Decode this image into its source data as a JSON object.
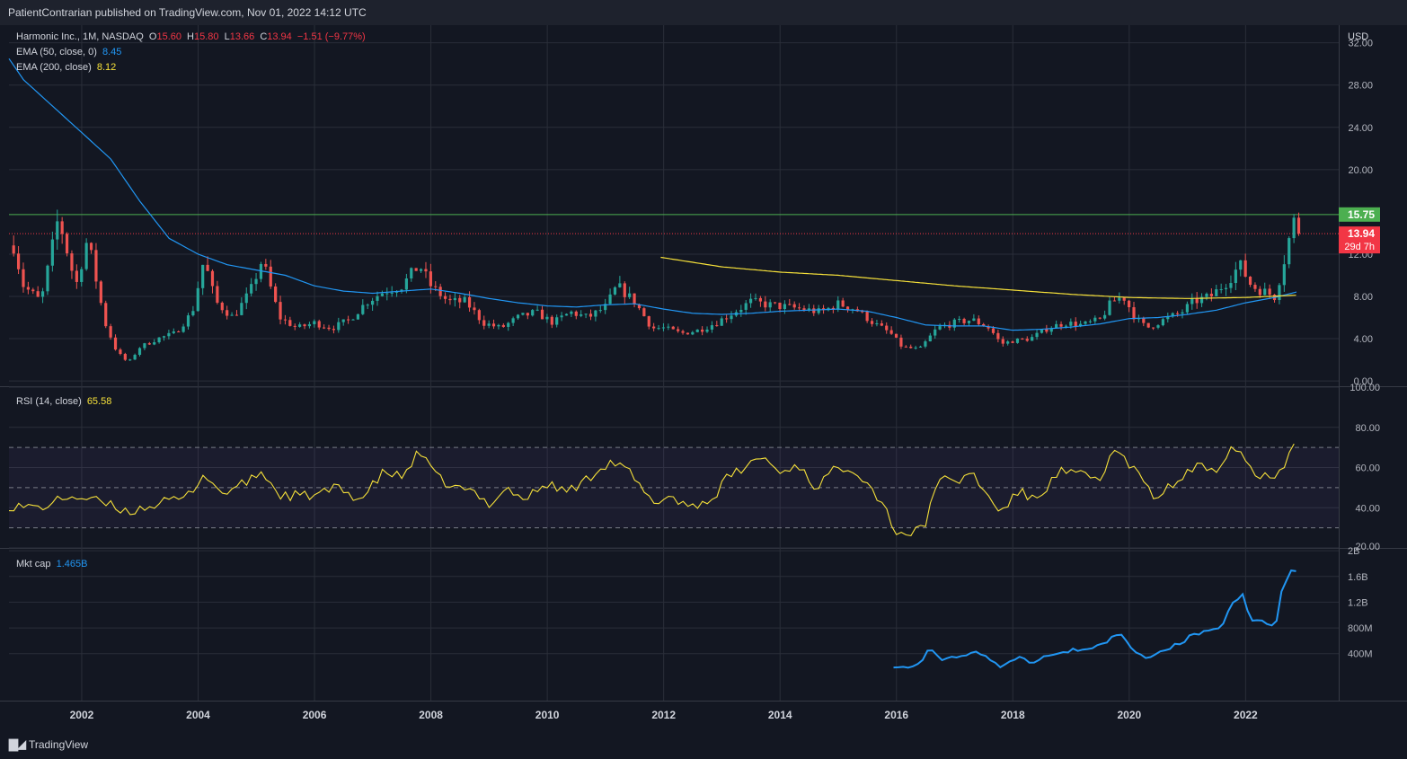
{
  "header": {
    "published": "PatientContrarian published on TradingView.com, Nov 01, 2022 14:12 UTC"
  },
  "footer": {
    "brand": "TradingView",
    "logo_icon": "tradingview-logo-icon"
  },
  "colors": {
    "background": "#131722",
    "grid": "#2a2e39",
    "up": "#26a69a",
    "down": "#ef5350",
    "ema50": "#2196f3",
    "ema200": "#f6e13a",
    "rsi": "#f6e13a",
    "mktcap": "#2196f3",
    "resistance": "#4caf50",
    "last_price": "#f23645"
  },
  "legend": {
    "symbol": "Harmonic Inc., 1M, NASDAQ",
    "o_label": "O",
    "o_value": "15.60",
    "h_label": "H",
    "h_value": "15.80",
    "l_label": "L",
    "l_value": "13.66",
    "c_label": "C",
    "c_value": "13.94",
    "change": "−1.51 (−9.77%)",
    "ema50_label": "EMA (50, close, 0)",
    "ema50_value": "8.45",
    "ema200_label": "EMA (200, close)",
    "ema200_value": "8.12",
    "rsi_label": "RSI (14, close)",
    "rsi_value": "65.58",
    "mktcap_label": "Mkt cap",
    "mktcap_value": "1.465B"
  },
  "chart_data": [
    {
      "type": "candlestick",
      "currency": "USD",
      "price_ticks": [
        "32.00",
        "28.00",
        "24.00",
        "20.00",
        "12.00",
        "8.00",
        "4.00",
        "0.00"
      ],
      "price_tick_values": [
        32,
        28,
        24,
        20,
        12,
        8,
        4,
        0
      ],
      "ylim": [
        -0.5,
        33.5
      ],
      "x_tick_labels": [
        "2002",
        "2004",
        "2006",
        "2008",
        "2010",
        "2012",
        "2014",
        "2016",
        "2018",
        "2020",
        "2022"
      ],
      "x_tick_years": [
        2002,
        2004,
        2006,
        2008,
        2010,
        2012,
        2014,
        2016,
        2018,
        2020,
        2022
      ],
      "xlim": [
        2000.75,
        2023.6
      ],
      "resistance_level": 15.75,
      "resistance_label": "15.75",
      "last_price": 13.94,
      "last_price_label": "13.94",
      "countdown": "29d 7h",
      "close_anchors": [
        [
          2000.8,
          13.5
        ],
        [
          2001.0,
          9.0
        ],
        [
          2001.3,
          7.5
        ],
        [
          2001.6,
          15.5
        ],
        [
          2001.9,
          9.0
        ],
        [
          2002.1,
          13.5
        ],
        [
          2002.4,
          5.5
        ],
        [
          2002.6,
          2.8
        ],
        [
          2002.8,
          1.7
        ],
        [
          2003.0,
          3.2
        ],
        [
          2003.3,
          4.0
        ],
        [
          2003.6,
          4.5
        ],
        [
          2003.9,
          6.5
        ],
        [
          2004.1,
          11.5
        ],
        [
          2004.3,
          7.5
        ],
        [
          2004.6,
          6.0
        ],
        [
          2004.9,
          8.5
        ],
        [
          2005.1,
          11.5
        ],
        [
          2005.4,
          6.0
        ],
        [
          2005.7,
          5.0
        ],
        [
          2006.0,
          5.5
        ],
        [
          2006.3,
          5.0
        ],
        [
          2006.6,
          5.8
        ],
        [
          2006.9,
          7.5
        ],
        [
          2007.2,
          8.5
        ],
        [
          2007.5,
          9.0
        ],
        [
          2007.8,
          11.0
        ],
        [
          2008.0,
          9.0
        ],
        [
          2008.3,
          7.5
        ],
        [
          2008.6,
          7.5
        ],
        [
          2008.9,
          5.5
        ],
        [
          2009.2,
          5.0
        ],
        [
          2009.5,
          6.0
        ],
        [
          2009.8,
          6.5
        ],
        [
          2010.1,
          5.5
        ],
        [
          2010.4,
          6.5
        ],
        [
          2010.7,
          6.0
        ],
        [
          2011.0,
          7.0
        ],
        [
          2011.2,
          9.0
        ],
        [
          2011.5,
          7.5
        ],
        [
          2011.8,
          5.0
        ],
        [
          2012.0,
          5.0
        ],
        [
          2012.3,
          4.5
        ],
        [
          2012.6,
          4.8
        ],
        [
          2012.9,
          5.5
        ],
        [
          2013.2,
          6.5
        ],
        [
          2013.5,
          7.5
        ],
        [
          2013.8,
          7.2
        ],
        [
          2014.1,
          7.0
        ],
        [
          2014.4,
          6.8
        ],
        [
          2014.7,
          6.5
        ],
        [
          2015.0,
          7.3
        ],
        [
          2015.3,
          6.8
        ],
        [
          2015.6,
          5.5
        ],
        [
          2015.9,
          4.5
        ],
        [
          2016.1,
          3.2
        ],
        [
          2016.4,
          3.0
        ],
        [
          2016.7,
          5.0
        ],
        [
          2017.0,
          5.5
        ],
        [
          2017.3,
          5.8
        ],
        [
          2017.6,
          5.0
        ],
        [
          2017.8,
          3.5
        ],
        [
          2018.0,
          3.8
        ],
        [
          2018.3,
          4.0
        ],
        [
          2018.6,
          5.0
        ],
        [
          2018.9,
          5.5
        ],
        [
          2019.2,
          5.3
        ],
        [
          2019.5,
          5.8
        ],
        [
          2019.7,
          7.5
        ],
        [
          2019.9,
          8.0
        ],
        [
          2020.1,
          6.0
        ],
        [
          2020.3,
          5.0
        ],
        [
          2020.6,
          5.8
        ],
        [
          2020.9,
          6.5
        ],
        [
          2021.1,
          7.5
        ],
        [
          2021.4,
          8.0
        ],
        [
          2021.7,
          9.5
        ],
        [
          2021.9,
          11.0
        ],
        [
          2022.1,
          9.0
        ],
        [
          2022.3,
          8.5
        ],
        [
          2022.5,
          8.0
        ],
        [
          2022.6,
          10.0
        ],
        [
          2022.75,
          13.5
        ],
        [
          2022.83,
          15.45
        ],
        [
          2022.9,
          13.94
        ]
      ],
      "ema50_anchors": [
        [
          2000.75,
          30.5
        ],
        [
          2001.0,
          28.5
        ],
        [
          2001.5,
          26.0
        ],
        [
          2002.0,
          23.5
        ],
        [
          2002.5,
          21.0
        ],
        [
          2003.0,
          17.0
        ],
        [
          2003.5,
          13.5
        ],
        [
          2004.0,
          12.0
        ],
        [
          2004.5,
          11.0
        ],
        [
          2005.0,
          10.5
        ],
        [
          2005.5,
          10.0
        ],
        [
          2006.0,
          9.0
        ],
        [
          2006.5,
          8.5
        ],
        [
          2007.0,
          8.3
        ],
        [
          2007.5,
          8.5
        ],
        [
          2008.0,
          8.7
        ],
        [
          2008.5,
          8.3
        ],
        [
          2009.0,
          7.8
        ],
        [
          2009.5,
          7.4
        ],
        [
          2010.0,
          7.1
        ],
        [
          2010.5,
          7.0
        ],
        [
          2011.0,
          7.2
        ],
        [
          2011.5,
          7.3
        ],
        [
          2012.0,
          6.8
        ],
        [
          2012.5,
          6.4
        ],
        [
          2013.0,
          6.3
        ],
        [
          2013.5,
          6.4
        ],
        [
          2014.0,
          6.6
        ],
        [
          2014.5,
          6.7
        ],
        [
          2015.0,
          6.8
        ],
        [
          2015.5,
          6.6
        ],
        [
          2016.0,
          6.0
        ],
        [
          2016.5,
          5.3
        ],
        [
          2017.0,
          5.2
        ],
        [
          2017.5,
          5.2
        ],
        [
          2018.0,
          4.8
        ],
        [
          2018.5,
          4.9
        ],
        [
          2019.0,
          5.1
        ],
        [
          2019.5,
          5.4
        ],
        [
          2020.0,
          5.9
        ],
        [
          2020.5,
          6.0
        ],
        [
          2021.0,
          6.3
        ],
        [
          2021.5,
          6.7
        ],
        [
          2022.0,
          7.4
        ],
        [
          2022.5,
          7.9
        ],
        [
          2022.9,
          8.45
        ]
      ],
      "ema200_anchors": [
        [
          2011.95,
          11.7
        ],
        [
          2013.0,
          10.8
        ],
        [
          2014.0,
          10.3
        ],
        [
          2015.0,
          10.0
        ],
        [
          2016.0,
          9.5
        ],
        [
          2017.0,
          9.0
        ],
        [
          2018.0,
          8.6
        ],
        [
          2019.0,
          8.2
        ],
        [
          2020.0,
          7.9
        ],
        [
          2021.0,
          7.8
        ],
        [
          2022.0,
          7.9
        ],
        [
          2022.9,
          8.12
        ]
      ]
    },
    {
      "type": "line",
      "name": "RSI (14, close)",
      "y_ticks": [
        "100.00",
        "80.00",
        "60.00",
        "40.00",
        "20.00"
      ],
      "y_tick_values": [
        100,
        80,
        60,
        40,
        20
      ],
      "ylim": [
        20,
        100
      ],
      "band": [
        30,
        70
      ],
      "midline": 50,
      "anchors": [
        [
          2000.75,
          41
        ],
        [
          2001.3,
          40
        ],
        [
          2001.8,
          46
        ],
        [
          2002.3,
          43
        ],
        [
          2002.8,
          38
        ],
        [
          2003.3,
          42
        ],
        [
          2003.8,
          45
        ],
        [
          2004.1,
          57
        ],
        [
          2004.4,
          47
        ],
        [
          2004.8,
          52
        ],
        [
          2005.1,
          58
        ],
        [
          2005.4,
          46
        ],
        [
          2006.0,
          46
        ],
        [
          2006.4,
          50
        ],
        [
          2006.8,
          44
        ],
        [
          2007.2,
          58
        ],
        [
          2007.5,
          55
        ],
        [
          2007.8,
          68
        ],
        [
          2008.1,
          55
        ],
        [
          2008.4,
          50
        ],
        [
          2008.7,
          48
        ],
        [
          2009.0,
          42
        ],
        [
          2009.3,
          50
        ],
        [
          2009.6,
          44
        ],
        [
          2010.0,
          52
        ],
        [
          2010.3,
          48
        ],
        [
          2010.6,
          52
        ],
        [
          2010.9,
          60
        ],
        [
          2011.1,
          63
        ],
        [
          2011.4,
          58
        ],
        [
          2011.8,
          42
        ],
        [
          2012.1,
          46
        ],
        [
          2012.4,
          41
        ],
        [
          2012.8,
          43
        ],
        [
          2013.1,
          55
        ],
        [
          2013.4,
          60
        ],
        [
          2013.7,
          66
        ],
        [
          2014.0,
          57
        ],
        [
          2014.3,
          62
        ],
        [
          2014.6,
          50
        ],
        [
          2014.9,
          58
        ],
        [
          2015.2,
          61
        ],
        [
          2015.5,
          53
        ],
        [
          2015.8,
          40
        ],
        [
          2016.0,
          28
        ],
        [
          2016.3,
          27
        ],
        [
          2016.5,
          32
        ],
        [
          2016.7,
          55
        ],
        [
          2017.0,
          52
        ],
        [
          2017.3,
          58
        ],
        [
          2017.6,
          44
        ],
        [
          2017.8,
          38
        ],
        [
          2018.1,
          48
        ],
        [
          2018.4,
          44
        ],
        [
          2018.8,
          58
        ],
        [
          2019.2,
          56
        ],
        [
          2019.5,
          54
        ],
        [
          2019.7,
          68
        ],
        [
          2019.9,
          65
        ],
        [
          2020.2,
          55
        ],
        [
          2020.4,
          45
        ],
        [
          2020.8,
          52
        ],
        [
          2021.1,
          60
        ],
        [
          2021.5,
          60
        ],
        [
          2021.8,
          72
        ],
        [
          2022.0,
          64
        ],
        [
          2022.2,
          55
        ],
        [
          2022.5,
          57
        ],
        [
          2022.7,
          63
        ],
        [
          2022.83,
          73
        ],
        [
          2022.9,
          65.58
        ]
      ]
    },
    {
      "type": "line",
      "name": "Mkt cap",
      "y_ticks": [
        "2B",
        "1.6B",
        "1.2B",
        "800M",
        "400M"
      ],
      "y_tick_values": [
        2000,
        1600,
        1200,
        800,
        400
      ],
      "ylim": [
        -330,
        2030
      ],
      "unit": "millions",
      "anchors": [
        [
          2015.95,
          200
        ],
        [
          2016.2,
          190
        ],
        [
          2016.4,
          260
        ],
        [
          2016.6,
          500
        ],
        [
          2016.8,
          300
        ],
        [
          2017.1,
          380
        ],
        [
          2017.4,
          440
        ],
        [
          2017.6,
          330
        ],
        [
          2017.8,
          190
        ],
        [
          2018.1,
          360
        ],
        [
          2018.3,
          250
        ],
        [
          2018.6,
          380
        ],
        [
          2018.9,
          440
        ],
        [
          2019.2,
          480
        ],
        [
          2019.5,
          500
        ],
        [
          2019.7,
          680
        ],
        [
          2019.9,
          640
        ],
        [
          2020.1,
          460
        ],
        [
          2020.3,
          330
        ],
        [
          2020.6,
          470
        ],
        [
          2020.9,
          560
        ],
        [
          2021.1,
          680
        ],
        [
          2021.4,
          760
        ],
        [
          2021.6,
          880
        ],
        [
          2021.9,
          1330
        ],
        [
          2022.1,
          980
        ],
        [
          2022.3,
          980
        ],
        [
          2022.5,
          800
        ],
        [
          2022.65,
          1470
        ],
        [
          2022.83,
          1920
        ],
        [
          2022.9,
          1465
        ]
      ]
    }
  ]
}
